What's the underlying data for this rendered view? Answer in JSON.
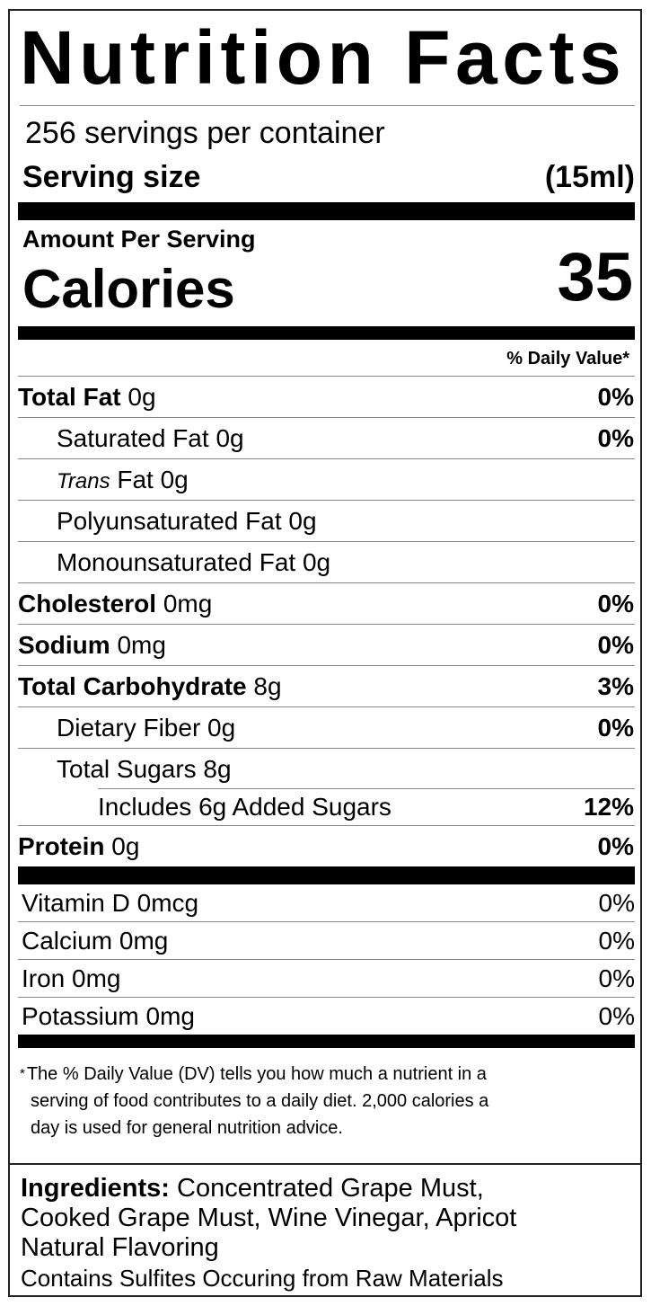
{
  "title": "Nutrition Facts",
  "servings_per_container": "256 servings per container",
  "serving_size": {
    "label": "Serving size",
    "value": "(15ml)"
  },
  "amount_per_serving": "Amount Per Serving",
  "calories": {
    "label": "Calories",
    "value": "35"
  },
  "daily_value_header": "% Daily Value*",
  "nutrients": [
    {
      "name": "Total Fat",
      "amount": "0g",
      "dv": "0%",
      "bold": true,
      "indent": 0
    },
    {
      "name": "Saturated Fat",
      "amount": "0g",
      "dv": "0%",
      "bold": false,
      "indent": 1
    },
    {
      "name": "Trans",
      "name_suffix": "Fat",
      "amount": "0g",
      "dv": "",
      "bold": false,
      "indent": 1,
      "italic": true
    },
    {
      "name": "Polyunsaturated Fat",
      "amount": "0g",
      "dv": "",
      "bold": false,
      "indent": 1
    },
    {
      "name": "Monounsaturated Fat",
      "amount": "0g",
      "dv": "",
      "bold": false,
      "indent": 1
    },
    {
      "name": "Cholesterol",
      "amount": "0mg",
      "dv": "0%",
      "bold": true,
      "indent": 0
    },
    {
      "name": "Sodium",
      "amount": "0mg",
      "dv": "0%",
      "bold": true,
      "indent": 0
    },
    {
      "name": "Total Carbohydrate",
      "amount": "8g",
      "dv": "3%",
      "bold": true,
      "indent": 0
    },
    {
      "name": "Dietary Fiber",
      "amount": "0g",
      "dv": "0%",
      "bold": false,
      "indent": 1
    },
    {
      "name": "Total Sugars",
      "amount": "8g",
      "dv": "",
      "bold": false,
      "indent": 1
    },
    {
      "name": "Includes 6g Added Sugars",
      "amount": "",
      "dv": "12%",
      "bold": false,
      "indent": 2
    },
    {
      "name": "Protein",
      "amount": "0g",
      "dv": "0%",
      "bold": true,
      "indent": 0
    }
  ],
  "vitamins": [
    {
      "name": "Vitamin D 0mcg",
      "dv": "0%"
    },
    {
      "name": "Calcium 0mg",
      "dv": "0%"
    },
    {
      "name": "Iron 0mg",
      "dv": "0%"
    },
    {
      "name": "Potassium 0mg",
      "dv": "0%"
    }
  ],
  "footnote": {
    "asterisk": "*",
    "lines": [
      "The % Daily Value (DV) tells you how much a nutrient in a",
      "serving of food contributes to a daily diet. 2,000 calories a",
      "day is used for general nutrition advice."
    ]
  },
  "ingredients": {
    "label": "Ingredients:",
    "lines": [
      "Concentrated Grape Must,",
      "Cooked Grape Must, Wine Vinegar, Apricot",
      "Natural Flavoring"
    ],
    "allergen": "Contains Sulfites Occuring from Raw Materials"
  }
}
